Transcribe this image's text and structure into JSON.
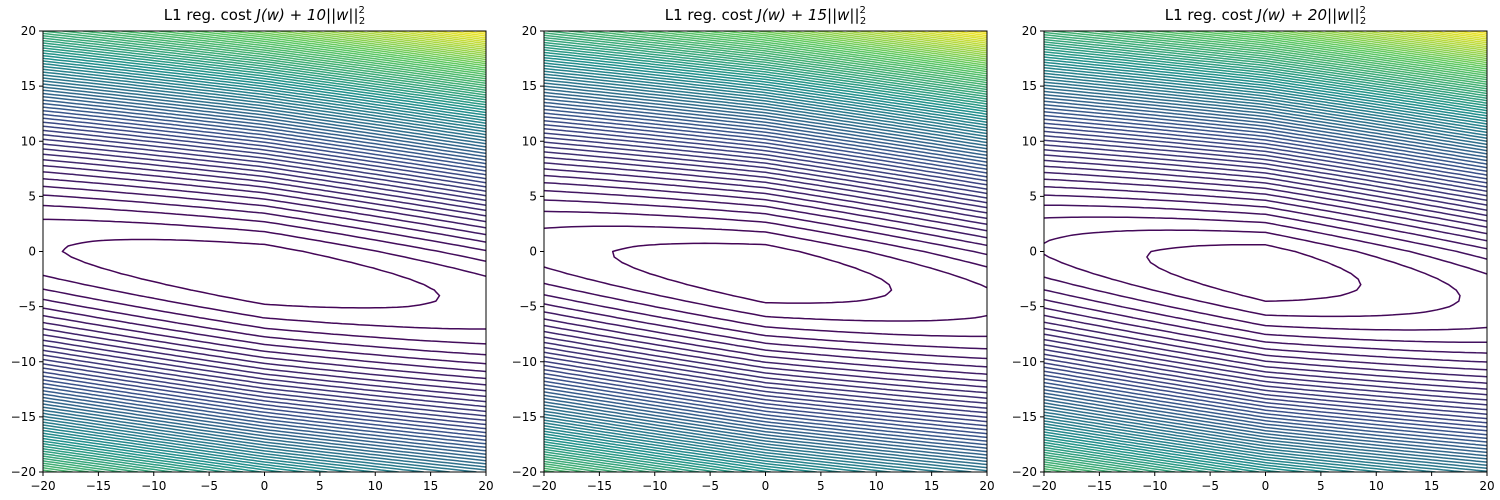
{
  "chart_data": [
    {
      "type": "contour",
      "title_prefix": "L1 reg. cost ",
      "title_math": "J(w) + 10||w||",
      "title_exp": "2",
      "title_sub": "2",
      "lambda": 10,
      "xlim": [
        -20,
        20
      ],
      "ylim": [
        -20,
        20
      ],
      "xticks": [
        -20,
        -15,
        -10,
        -5,
        0,
        5,
        10,
        15,
        20
      ],
      "yticks": [
        -20,
        -15,
        -10,
        -5,
        0,
        5,
        10,
        15,
        20
      ],
      "colormap": [
        "#440154",
        "#3b528b",
        "#21918c",
        "#5ec962",
        "#fde725"
      ],
      "grid": false
    },
    {
      "type": "contour",
      "title_prefix": "L1 reg. cost ",
      "title_math": "J(w) + 15||w||",
      "title_exp": "2",
      "title_sub": "2",
      "lambda": 15,
      "xlim": [
        -20,
        20
      ],
      "ylim": [
        -20,
        20
      ],
      "xticks": [
        -20,
        -15,
        -10,
        -5,
        0,
        5,
        10,
        15,
        20
      ],
      "yticks": [
        -20,
        -15,
        -10,
        -5,
        0,
        5,
        10,
        15,
        20
      ],
      "colormap": [
        "#440154",
        "#3b528b",
        "#21918c",
        "#5ec962",
        "#fde725"
      ],
      "grid": false
    },
    {
      "type": "contour",
      "title_prefix": "L1 reg. cost ",
      "title_math": "J(w) + 20||w||",
      "title_exp": "2",
      "title_sub": "2",
      "lambda": 20,
      "xlim": [
        -20,
        20
      ],
      "ylim": [
        -20,
        20
      ],
      "xticks": [
        -20,
        -15,
        -10,
        -5,
        0,
        5,
        10,
        15,
        20
      ],
      "yticks": [
        -20,
        -15,
        -10,
        -5,
        0,
        5,
        10,
        15,
        20
      ],
      "colormap": [
        "#440154",
        "#3b528b",
        "#21918c",
        "#5ec962",
        "#fde725"
      ],
      "grid": false
    }
  ]
}
